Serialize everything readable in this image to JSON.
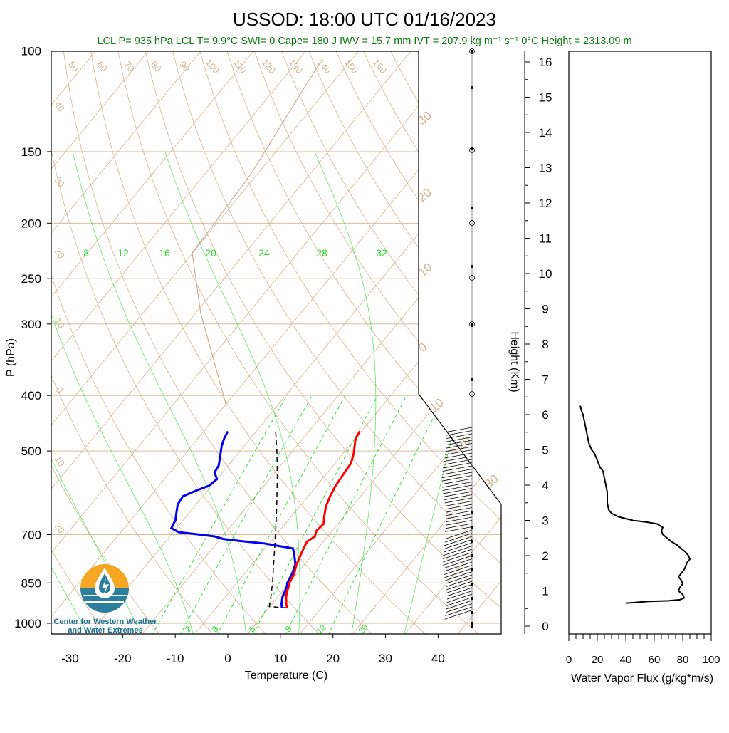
{
  "header": {
    "title": "USSOD: 18:00 UTC 01/16/2023",
    "info": "LCL P= 935 hPa  LCL T= 9.9°C  SWI= 0  Cape= 180 J  IWV = 15.7 mm  IVT = 207.9 kg m⁻¹ s⁻¹  0°C Height = 2313.09 m"
  },
  "logo": {
    "line1": "Center for Western Weather",
    "line2": "and Water Extremes"
  },
  "colors": {
    "temperature": "#ff0000",
    "dewpoint": "#0000ee",
    "parcel": "#000000",
    "isotherm": "#d2b48c",
    "mixing_ratio": "#22dd22",
    "flux": "#000000"
  },
  "chart_data": [
    {
      "type": "line",
      "subtype": "skew-t",
      "xlabel": "Temperature (C)",
      "ylabel": "P (hPa)",
      "right_label": "Height (Km)",
      "x_ticks": [
        -30,
        -20,
        -10,
        0,
        10,
        20,
        30,
        40
      ],
      "p_ticks": [
        100,
        150,
        200,
        250,
        300,
        400,
        500,
        700,
        850,
        1000
      ],
      "height_ticks": [
        0,
        1,
        2,
        3,
        4,
        5,
        6,
        7,
        8,
        9,
        10,
        11,
        12,
        13,
        14,
        15,
        16
      ],
      "isotherm_labels_top": [
        "50",
        "60",
        "70",
        "80",
        "90",
        "100",
        "110",
        "120",
        "130",
        "140",
        "150",
        "160"
      ],
      "isotherm_labels_left": [
        "40",
        "30",
        "20",
        "10",
        "0",
        "10",
        "20"
      ],
      "moist_adiabat_labels": [
        "30",
        "20",
        "10",
        "0",
        "10",
        "20",
        "30"
      ],
      "mixing_ratio_labels_top": [
        "8",
        "12",
        "16",
        "20",
        "24",
        "28",
        "32"
      ],
      "mixing_ratio_labels_bottom": [
        "2",
        "3",
        "5",
        "8",
        "12",
        "20"
      ],
      "series": [
        {
          "name": "Temperature",
          "p": [
            940,
            925,
            900,
            880,
            860,
            850,
            820,
            790,
            760,
            735,
            720,
            705,
            690,
            670,
            650,
            625,
            600,
            575,
            550,
            525,
            505,
            490,
            475,
            462
          ],
          "t": [
            13.5,
            12.7,
            11.6,
            10.9,
            10.4,
            10.0,
            9.5,
            8.5,
            7.8,
            7.2,
            6.9,
            7.6,
            7.0,
            7.3,
            6.2,
            5.0,
            4.2,
            3.6,
            3.3,
            3.0,
            2.0,
            1.0,
            0.0,
            -0.3
          ]
        },
        {
          "name": "Dewpoint",
          "p": [
            940,
            925,
            900,
            880,
            860,
            850,
            820,
            790,
            760,
            740,
            725,
            718,
            712,
            705,
            700,
            693,
            682,
            660,
            640,
            620,
            600,
            585,
            575,
            560,
            545,
            530,
            510,
            490,
            475,
            462
          ],
          "t": [
            12.5,
            11.8,
            10.9,
            10.5,
            10.0,
            9.6,
            9.1,
            8.3,
            6.6,
            5.3,
            -1.0,
            -6.0,
            -9.5,
            -11.5,
            -14.5,
            -19.0,
            -21.0,
            -21.5,
            -22.5,
            -23.5,
            -23.8,
            -22.0,
            -20.5,
            -20.0,
            -21.5,
            -21.8,
            -23.0,
            -24.3,
            -25.0,
            -25.4
          ]
        },
        {
          "name": "Parcel",
          "p": [
            940,
            935,
            900,
            850,
            800,
            750,
            700,
            650,
            600,
            550,
            500,
            462
          ],
          "t": [
            13.5,
            9.9,
            8.7,
            6.8,
            4.6,
            2.3,
            -0.2,
            -2.9,
            -5.9,
            -9.2,
            -13.0,
            -16.3
          ]
        }
      ]
    },
    {
      "type": "line",
      "xlabel": "Water Vapor Flux (g/kg*m/s)",
      "ylabel": "Height (Km)",
      "xlim": [
        0,
        100
      ],
      "ylim": [
        0,
        16
      ],
      "x_ticks": [
        0,
        20,
        40,
        60,
        80,
        100
      ],
      "series": [
        {
          "x": [
            40,
            55,
            70,
            78,
            81,
            80,
            77,
            78,
            80,
            79,
            77,
            79,
            81,
            82,
            83,
            85,
            84,
            82,
            79,
            76,
            72,
            69,
            66,
            65,
            66,
            62,
            55,
            45,
            35,
            30,
            28,
            27,
            27,
            26,
            25,
            24,
            22,
            21,
            20,
            19,
            18,
            16,
            14,
            13,
            12,
            11,
            10,
            9,
            8
          ],
          "y": [
            0.65,
            0.7,
            0.72,
            0.75,
            0.8,
            0.9,
            1.0,
            1.1,
            1.2,
            1.3,
            1.4,
            1.5,
            1.6,
            1.7,
            1.8,
            1.9,
            2.0,
            2.1,
            2.2,
            2.3,
            2.4,
            2.5,
            2.6,
            2.7,
            2.8,
            2.9,
            2.95,
            3.0,
            3.1,
            3.2,
            3.3,
            3.5,
            3.8,
            4.0,
            4.2,
            4.4,
            4.5,
            4.6,
            4.7,
            4.8,
            4.9,
            5.0,
            5.2,
            5.4,
            5.6,
            5.8,
            6.0,
            6.1,
            6.25
          ]
        }
      ]
    }
  ]
}
